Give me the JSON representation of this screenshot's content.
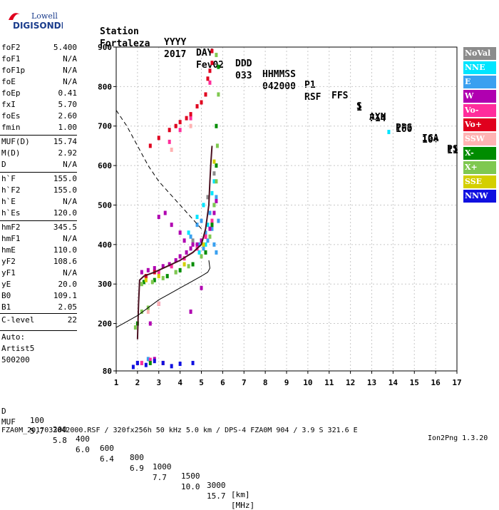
{
  "logo": {
    "line1": "Lowell",
    "line2": "DIGISONDE"
  },
  "header": {
    "cols": [
      "Station",
      "YYYY",
      "DAY",
      "DDD",
      "HHMMSS",
      "P1",
      "FFS",
      "S",
      "AXN",
      "PPS",
      "IGA",
      "PS"
    ],
    "vals": [
      "Fortaleza",
      "2017",
      "Fev02",
      "033",
      "042000",
      "RSF",
      "1",
      "714",
      "100",
      "10+",
      "11"
    ]
  },
  "params": [
    {
      "label": "foF2",
      "value": "5.400"
    },
    {
      "label": "foF1",
      "value": "N/A"
    },
    {
      "label": "foF1p",
      "value": "N/A"
    },
    {
      "label": "foE",
      "value": "N/A"
    },
    {
      "label": "foEp",
      "value": "0.41"
    },
    {
      "label": "fxI",
      "value": "5.70"
    },
    {
      "label": "foEs",
      "value": "2.60"
    },
    {
      "label": "fmin",
      "value": "1.00"
    },
    {
      "label": "MUF(D)",
      "value": "15.74",
      "sep": true
    },
    {
      "label": "M(D)",
      "value": "2.92"
    },
    {
      "label": "D",
      "value": "N/A"
    },
    {
      "label": "h`F",
      "value": "155.0",
      "sep": true
    },
    {
      "label": "h`F2",
      "value": "155.0"
    },
    {
      "label": "h`E",
      "value": "N/A"
    },
    {
      "label": "h`Es",
      "value": "120.0"
    },
    {
      "label": "hmF2",
      "value": "345.5",
      "sep": true
    },
    {
      "label": "hmF1",
      "value": "N/A"
    },
    {
      "label": "hmE",
      "value": "110.0"
    },
    {
      "label": "yF2",
      "value": "108.6"
    },
    {
      "label": "yF1",
      "value": "N/A"
    },
    {
      "label": "yE",
      "value": "20.0"
    },
    {
      "label": "B0",
      "value": "109.1"
    },
    {
      "label": "B1",
      "value": "2.05"
    },
    {
      "label": "C-level",
      "value": "22",
      "sep": true
    },
    {
      "label": "Auto:",
      "value": "",
      "sep": true
    },
    {
      "label": "Artist5",
      "value": ""
    },
    {
      "label": "500200",
      "value": ""
    }
  ],
  "legend": [
    {
      "label": "NoVal",
      "color": "#8c8c8c"
    },
    {
      "label": "NNE",
      "color": "#00e5ff"
    },
    {
      "label": "E",
      "color": "#3aa0f0"
    },
    {
      "label": "W",
      "color": "#b000b0"
    },
    {
      "label": "Vo-",
      "color": "#ff2d9c"
    },
    {
      "label": "Vo+",
      "color": "#e0001e"
    },
    {
      "label": "SSW",
      "color": "#ffb3b3"
    },
    {
      "label": "X-",
      "color": "#008c00"
    },
    {
      "label": "X+",
      "color": "#7fc850"
    },
    {
      "label": "SSE",
      "color": "#d4cf00"
    },
    {
      "label": "NNW",
      "color": "#1010e0"
    }
  ],
  "bottom": {
    "d_label": "D",
    "d_values": [
      "100",
      "200",
      "400",
      "600",
      "800",
      "1000",
      "1500",
      "3000",
      "[km]"
    ],
    "muf_label": "MUF",
    "muf_values": [
      "5.7",
      "5.8",
      "6.0",
      "6.4",
      "6.9",
      "7.7",
      "10.0",
      "15.7",
      "[MHz]"
    ],
    "footer": "FZA0M_2017033042000.RSF / 320fx256h 50 kHz 5.0 km / DPS-4 FZA0M 904 / 3.9 S 321.6 E",
    "version": "Ion2Png 1.3.20"
  },
  "chart_data": {
    "type": "scatter",
    "xlim": [
      1,
      17
    ],
    "ylim": [
      80,
      900
    ],
    "xticks": [
      1,
      2,
      3,
      4,
      5,
      6,
      7,
      8,
      9,
      10,
      11,
      12,
      13,
      14,
      15,
      16,
      17
    ],
    "yticks": [
      80,
      200,
      300,
      400,
      500,
      600,
      700,
      800,
      900
    ],
    "grid": true,
    "legend_position": "right",
    "series": [
      {
        "color": "#8c8c8c",
        "x": [
          2.4,
          3.8,
          4.6,
          5.3,
          5.6
        ],
        "y": [
          320,
          330,
          410,
          520,
          580
        ]
      },
      {
        "color": "#00e5ff",
        "x": [
          4.4,
          4.8,
          5.1,
          5.3,
          5.5,
          5.6,
          4.9,
          5.2,
          13.8
        ],
        "y": [
          430,
          470,
          500,
          450,
          530,
          560,
          380,
          400,
          685
        ]
      },
      {
        "color": "#3aa0f0",
        "x": [
          4.5,
          4.8,
          5.0,
          5.2,
          5.4,
          5.6,
          5.7,
          5.8,
          5.5,
          5.3,
          5.6,
          5.7,
          4.9,
          5.1,
          2.2,
          2.5
        ],
        "y": [
          420,
          450,
          460,
          430,
          480,
          500,
          520,
          460,
          440,
          410,
          400,
          380,
          400,
          390,
          100,
          110
        ]
      },
      {
        "color": "#b000b0",
        "x": [
          2.2,
          2.5,
          2.8,
          3.2,
          3.5,
          3.8,
          4.0,
          4.3,
          4.5,
          4.8,
          5.0,
          5.2,
          5.4,
          5.5,
          3.0,
          3.3,
          3.6,
          4.0,
          4.2,
          4.6,
          5.6,
          5.7,
          2.6,
          3.0,
          4.5,
          5.0,
          2.0,
          2.8
        ],
        "y": [
          330,
          335,
          340,
          345,
          350,
          360,
          370,
          380,
          390,
          400,
          410,
          420,
          440,
          450,
          470,
          480,
          450,
          430,
          410,
          400,
          480,
          510,
          200,
          250,
          230,
          290,
          100,
          110
        ]
      },
      {
        "color": "#ff2d9c",
        "x": [
          2.4,
          3.0,
          3.6,
          4.2,
          4.8,
          5.2,
          5.5,
          3.5,
          4.0,
          4.5,
          5.0,
          5.4,
          2.2,
          2.6
        ],
        "y": [
          320,
          330,
          345,
          365,
          390,
          420,
          460,
          660,
          690,
          720,
          760,
          810,
          100,
          108
        ]
      },
      {
        "color": "#e0001e",
        "x": [
          2.6,
          3.0,
          3.5,
          4.0,
          4.5,
          5.0,
          5.3,
          5.5,
          3.8,
          4.3,
          4.8,
          5.2,
          5.4,
          5.5,
          2.4,
          2.8,
          3.2
        ],
        "y": [
          650,
          670,
          690,
          710,
          730,
          760,
          820,
          860,
          700,
          720,
          750,
          780,
          840,
          890,
          320,
          330,
          100
        ]
      },
      {
        "color": "#ffb3b3",
        "x": [
          2.5,
          3.0,
          3.6,
          4.5
        ],
        "y": [
          230,
          250,
          640,
          700
        ]
      },
      {
        "color": "#008c00",
        "x": [
          2.3,
          2.8,
          3.4,
          4.0,
          4.6,
          5.2,
          5.5,
          5.7,
          5.7,
          5.8,
          2.0,
          2.6
        ],
        "y": [
          305,
          310,
          320,
          335,
          350,
          380,
          450,
          600,
          700,
          850,
          200,
          100
        ]
      },
      {
        "color": "#7fc850",
        "x": [
          2.2,
          2.7,
          3.2,
          3.8,
          4.4,
          5.0,
          5.4,
          5.6,
          5.7,
          5.75,
          5.8,
          5.7,
          2.2,
          2.5,
          1.9
        ],
        "y": [
          300,
          305,
          315,
          330,
          345,
          370,
          420,
          500,
          560,
          650,
          780,
          880,
          230,
          240,
          190
        ]
      },
      {
        "color": "#d4cf00",
        "x": [
          2.4,
          3.0,
          4.2,
          5.1,
          5.6
        ],
        "y": [
          310,
          320,
          350,
          400,
          610
        ]
      },
      {
        "color": "#1010e0",
        "x": [
          1.8,
          2.0,
          2.4,
          2.8,
          3.2,
          3.6,
          4.0,
          4.6
        ],
        "y": [
          90,
          100,
          95,
          105,
          100,
          92,
          98,
          100
        ]
      }
    ],
    "curves": [
      {
        "style": "solid-dark",
        "x": [
          2.0,
          2.05,
          2.1,
          2.3,
          2.8,
          3.4,
          4.0,
          4.6,
          5.0,
          5.2,
          5.35,
          5.4,
          5.45,
          5.5
        ],
        "y": [
          160,
          250,
          310,
          320,
          330,
          345,
          360,
          380,
          400,
          440,
          500,
          560,
          610,
          650
        ]
      },
      {
        "style": "solid",
        "x": [
          1.0,
          1.5,
          2.0,
          2.5,
          3.0,
          3.5,
          4.0,
          4.5,
          5.0,
          5.3,
          5.4,
          5.35
        ],
        "y": [
          190,
          205,
          220,
          240,
          260,
          275,
          290,
          305,
          320,
          330,
          340,
          360
        ]
      },
      {
        "style": "dashed",
        "x": [
          1.0,
          1.5,
          2.0,
          2.5,
          3.0,
          3.5,
          4.0,
          4.5,
          5.0
        ],
        "y": [
          740,
          700,
          650,
          600,
          560,
          530,
          500,
          470,
          440
        ]
      }
    ]
  }
}
